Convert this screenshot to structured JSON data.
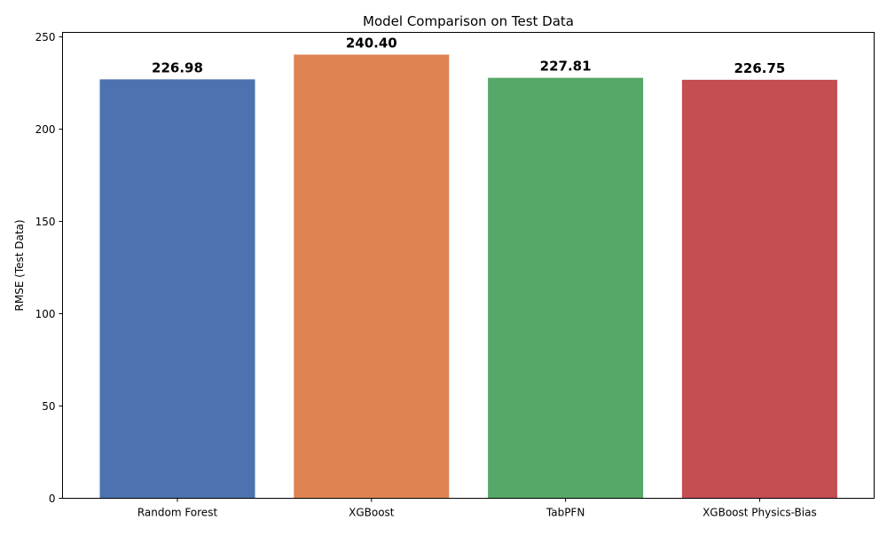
{
  "chart_data": {
    "type": "bar",
    "title": "Model Comparison on Test Data",
    "xlabel": "",
    "ylabel": "RMSE (Test Data)",
    "categories": [
      "Random Forest",
      "XGBoost",
      "TabPFN",
      "XGBoost Physics-Bias"
    ],
    "values": [
      226.98,
      240.4,
      227.81,
      226.75
    ],
    "data_labels": [
      "226.98",
      "240.40",
      "227.81",
      "226.75"
    ],
    "colors": [
      "#4c72b0",
      "#dd8452",
      "#55a868",
      "#c44e52"
    ],
    "ylim": [
      0,
      252.42
    ],
    "yticks": [
      0,
      50,
      100,
      150,
      200,
      250
    ],
    "ytick_labels": [
      "0",
      "50",
      "100",
      "150",
      "200",
      "250"
    ],
    "grid": false,
    "legend": "none"
  }
}
